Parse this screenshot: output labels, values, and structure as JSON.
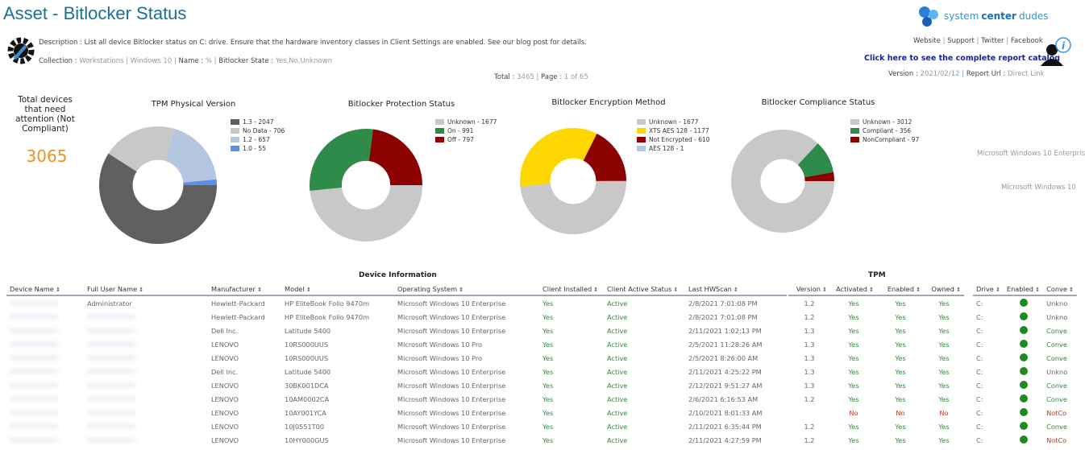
{
  "header": {
    "title": "Asset - Bitlocker Status",
    "description": "Description : List all device Bitlocker status on C: drive. Ensure that the hardware inventory classes in Client Settings are enabled. See our blog post for details.",
    "collection_label": "Collection : ",
    "collection_value": "Workstations | Windows 10",
    "name_label": "Name : ",
    "name_value": "%",
    "state_label": "Bitlocker State : ",
    "state_value": "Yes,No,Unknown",
    "total_label": "Total : ",
    "total_value": "3465",
    "page_label": "Page : ",
    "page_value": "1 of 65",
    "logo_a": "system",
    "logo_b": "center",
    "logo_c": "dudes",
    "links": [
      "Website",
      "Support",
      "Twitter",
      "Facebook"
    ],
    "catalog": "Click here to see the complete report catalog",
    "version_label": "Version : ",
    "version_value": "2021/02/12",
    "url_label": "Report Url : ",
    "url_value": "Direct Link"
  },
  "kpi": {
    "label": "Total devices that need attention (Not Compliant)",
    "value": "3065"
  },
  "side_labels": [
    "Microsoft Windows 10 Enterpris",
    "Microsoft Windows 10"
  ],
  "chart_data": [
    {
      "type": "pie",
      "title": "TPM Physical Version",
      "categories": [
        "1.3 - 2047",
        "No Data - 706",
        "1.2 - 657",
        "1.0 - 55"
      ],
      "values": [
        2047,
        706,
        657,
        55
      ],
      "colors": [
        "#5f5f5f",
        "#c8c8c8",
        "#b4c6e0",
        "#5b8fe8"
      ]
    },
    {
      "type": "pie",
      "title": "Bitlocker Protection Status",
      "categories": [
        "Unknown - 1677",
        "On - 991",
        "Off - 797"
      ],
      "values": [
        1677,
        991,
        797
      ],
      "colors": [
        "#c8c8c8",
        "#2e8b4a",
        "#8b0000"
      ]
    },
    {
      "type": "pie",
      "title": "Bitlocker Encryption Method",
      "categories": [
        "Unknown - 1677",
        "XTS AES 128 - 1177",
        "Not Encrypted - 610",
        "AES 128 - 1"
      ],
      "values": [
        1677,
        1177,
        610,
        1
      ],
      "colors": [
        "#c8c8c8",
        "#ffd700",
        "#8b0000",
        "#b4c6e0"
      ]
    },
    {
      "type": "pie",
      "title": "Bitlocker Compliance Status",
      "categories": [
        "Unknown - 3012",
        "Compliant - 356",
        "NonCompliant - 97"
      ],
      "values": [
        3012,
        356,
        97
      ],
      "colors": [
        "#c8c8c8",
        "#2e8b4a",
        "#8b0000"
      ]
    }
  ],
  "table": {
    "group_device": "Device Information",
    "group_tpm": "TPM",
    "columns": [
      "Device Name",
      "Full User Name",
      "Manufacturer",
      "Model",
      "Operating System",
      "Client Installed",
      "Client Active Status",
      "Last HWScan",
      "Version",
      "Activated",
      "Enabled",
      "Owned",
      "Drive",
      "Enabled",
      "Conve"
    ],
    "rows": [
      [
        "",
        "Administrator",
        "Hewlett-Packard",
        "HP EliteBook Folio 9470m",
        "Microsoft Windows 10 Enterprise",
        "Yes",
        "Active",
        "2/8/2021 7:01:08 PM",
        "1.2",
        "Yes",
        "Yes",
        "Yes",
        "C:",
        "",
        "Unkno"
      ],
      [
        "",
        "",
        "Hewlett-Packard",
        "HP EliteBook Folio 9470m",
        "Microsoft Windows 10 Enterprise",
        "Yes",
        "Active",
        "2/8/2021 7:01:08 PM",
        "1.2",
        "Yes",
        "Yes",
        "Yes",
        "C:",
        "",
        "Unkno"
      ],
      [
        "",
        "",
        "Dell Inc.",
        "Latitude 5400",
        "Microsoft Windows 10 Enterprise",
        "Yes",
        "Active",
        "2/11/2021 1:02:13 PM",
        "1.3",
        "Yes",
        "Yes",
        "Yes",
        "C:",
        "",
        "Conve"
      ],
      [
        "",
        "",
        "LENOVO",
        "10RS000UUS",
        "Microsoft Windows 10 Pro",
        "Yes",
        "Active",
        "2/5/2021 11:28:26 AM",
        "1.3",
        "Yes",
        "Yes",
        "Yes",
        "C:",
        "",
        "Conve"
      ],
      [
        "",
        "",
        "LENOVO",
        "10RS000UUS",
        "Microsoft Windows 10 Pro",
        "Yes",
        "Active",
        "2/5/2021 8:26:00 AM",
        "1.3",
        "Yes",
        "Yes",
        "Yes",
        "C:",
        "",
        "Conve"
      ],
      [
        "",
        "",
        "Dell Inc.",
        "Latitude 5400",
        "Microsoft Windows 10 Enterprise",
        "Yes",
        "Active",
        "2/11/2021 4:25:22 PM",
        "1.3",
        "Yes",
        "Yes",
        "Yes",
        "C:",
        "",
        "Unkno"
      ],
      [
        "",
        "",
        "LENOVO",
        "30BK001DCA",
        "Microsoft Windows 10 Enterprise",
        "Yes",
        "Active",
        "2/12/2021 9:51:27 AM",
        "1.3",
        "Yes",
        "Yes",
        "Yes",
        "C:",
        "",
        "Conve"
      ],
      [
        "",
        "",
        "LENOVO",
        "10AM0002CA",
        "Microsoft Windows 10 Enterprise",
        "Yes",
        "Active",
        "2/6/2021 6:16:53 AM",
        "1.2",
        "Yes",
        "Yes",
        "Yes",
        "C:",
        "",
        "Conve"
      ],
      [
        "",
        "",
        "LENOVO",
        "10AY001YCA",
        "Microsoft Windows 10 Enterprise",
        "Yes",
        "Active",
        "2/10/2021 8:01:33 AM",
        "",
        "No",
        "No",
        "No",
        "C:",
        "",
        "NotCo"
      ],
      [
        "",
        "",
        "LENOVO",
        "10J0551T00",
        "Microsoft Windows 10 Enterprise",
        "Yes",
        "Active",
        "2/11/2021 6:35:44 PM",
        "1.2",
        "Yes",
        "Yes",
        "Yes",
        "C:",
        "",
        "Conve"
      ],
      [
        "",
        "",
        "LENOVO",
        "10HY000GUS",
        "Microsoft Windows 10 Enterprise",
        "Yes",
        "Active",
        "2/11/2021 4:27:59 PM",
        "1.2",
        "Yes",
        "Yes",
        "Yes",
        "C:",
        "",
        "NotCo"
      ]
    ]
  }
}
